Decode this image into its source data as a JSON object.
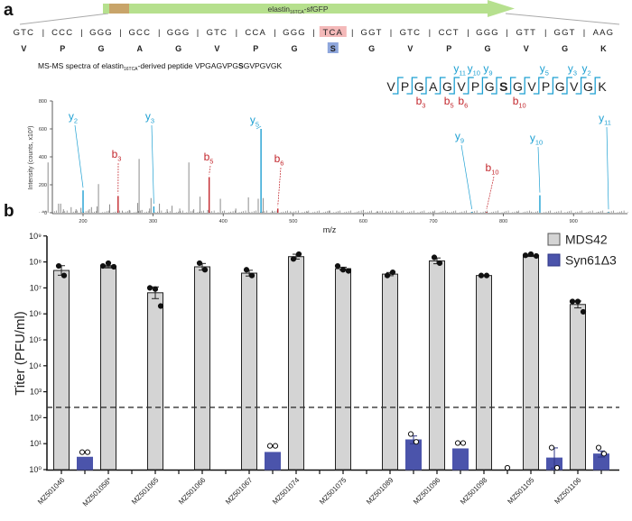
{
  "panel_a": {
    "label": "a",
    "construct": {
      "name": "elastin",
      "subscript": "16TCA",
      "suffix": "-sfGFP"
    },
    "codons": [
      "GTC",
      "CCC",
      "GGG",
      "GCC",
      "GGG",
      "GTC",
      "CCA",
      "GGG",
      "TCA",
      "GGT",
      "GTC",
      "CCT",
      "GGG",
      "GTT",
      "GGT",
      "AAG"
    ],
    "amino_acids": [
      "V",
      "P",
      "G",
      "A",
      "G",
      "V",
      "P",
      "G",
      "S",
      "G",
      "V",
      "P",
      "G",
      "V",
      "G",
      "K"
    ],
    "highlight_index": 8,
    "spectrum_title": {
      "prefix": "MS-MS spectra of elastin",
      "subscript": "16TCA",
      "middle": "-derived peptide VPGAGVPG",
      "bold": "S",
      "suffix": "GVPGVGK"
    },
    "peptide_fragments": {
      "y_breaks": [
        {
          "label": "y",
          "index": "11",
          "after": 5
        },
        {
          "label": "y",
          "index": "10",
          "after": 6
        },
        {
          "label": "y",
          "index": "9",
          "after": 7
        },
        {
          "label": "y",
          "index": "5",
          "after": 11
        },
        {
          "label": "y",
          "index": "3",
          "after": 13
        },
        {
          "label": "y",
          "index": "2",
          "after": 14
        }
      ],
      "b_breaks": [
        {
          "label": "b",
          "index": "3",
          "after": 3
        },
        {
          "label": "b",
          "index": "5",
          "after": 5
        },
        {
          "label": "b",
          "index": "6",
          "after": 6
        },
        {
          "label": "b",
          "index": "10",
          "after": 10
        }
      ]
    }
  },
  "panel_b": {
    "label": "b"
  },
  "colors": {
    "y_ion": "#1ea0d2",
    "b_ion": "#c3272d",
    "unassigned": "#8c8c8c",
    "mds42": "#d4d4d4",
    "syn61": "#4b54ab",
    "arrow": "#b6e08e",
    "codon_highlight": "#f4b9b9",
    "aa_highlight": "#8ea6dc"
  },
  "chart_data": [
    {
      "type": "bar",
      "title": "",
      "xlabel": "m/z",
      "ylabel": "Intensity (counts, x10³)",
      "xlim": [
        130,
        980
      ],
      "ylim": [
        0,
        800
      ],
      "xticks": [
        200,
        300,
        400,
        500,
        600,
        700,
        800,
        900
      ],
      "yticks": [
        0,
        200,
        400,
        600,
        800
      ],
      "assigned_peaks": [
        {
          "ion": "y",
          "index": "2",
          "mz": 200,
          "intensity": 160
        },
        {
          "ion": "b",
          "index": "3",
          "mz": 250,
          "intensity": 120
        },
        {
          "ion": "y",
          "index": "3",
          "mz": 301,
          "intensity": 45
        },
        {
          "ion": "b",
          "index": "5",
          "mz": 380,
          "intensity": 255
        },
        {
          "ion": "y",
          "index": "5",
          "mz": 454,
          "intensity": 600
        },
        {
          "ion": "b",
          "index": "6",
          "mz": 478,
          "intensity": 30
        },
        {
          "ion": "y",
          "index": "9",
          "mz": 755,
          "intensity": 6
        },
        {
          "ion": "b",
          "index": "10",
          "mz": 776,
          "intensity": 6
        },
        {
          "ion": "y",
          "index": "10",
          "mz": 852,
          "intensity": 125
        },
        {
          "ion": "y",
          "index": "11",
          "mz": 950,
          "intensity": 5
        }
      ],
      "unassigned_peaks": [
        {
          "mz": 143,
          "intensity": 15
        },
        {
          "mz": 150,
          "intensity": 360
        },
        {
          "mz": 165,
          "intensity": 65
        },
        {
          "mz": 168,
          "intensity": 65
        },
        {
          "mz": 172,
          "intensity": 25
        },
        {
          "mz": 183,
          "intensity": 40
        },
        {
          "mz": 190,
          "intensity": 25
        },
        {
          "mz": 197,
          "intensity": 35
        },
        {
          "mz": 209,
          "intensity": 25
        },
        {
          "mz": 212,
          "intensity": 40
        },
        {
          "mz": 220,
          "intensity": 45
        },
        {
          "mz": 222,
          "intensity": 205
        },
        {
          "mz": 238,
          "intensity": 60
        },
        {
          "mz": 256,
          "intensity": 15
        },
        {
          "mz": 266,
          "intensity": 20
        },
        {
          "mz": 278,
          "intensity": 70
        },
        {
          "mz": 280,
          "intensity": 385
        },
        {
          "mz": 284,
          "intensity": 20
        },
        {
          "mz": 295,
          "intensity": 30
        },
        {
          "mz": 297,
          "intensity": 105
        },
        {
          "mz": 309,
          "intensity": 65
        },
        {
          "mz": 320,
          "intensity": 25
        },
        {
          "mz": 327,
          "intensity": 50
        },
        {
          "mz": 338,
          "intensity": 30
        },
        {
          "mz": 351,
          "intensity": 360
        },
        {
          "mz": 358,
          "intensity": 25
        },
        {
          "mz": 367,
          "intensity": 115
        },
        {
          "mz": 378,
          "intensity": 20
        },
        {
          "mz": 396,
          "intensity": 100
        },
        {
          "mz": 418,
          "intensity": 30
        },
        {
          "mz": 436,
          "intensity": 110
        },
        {
          "mz": 450,
          "intensity": 100
        },
        {
          "mz": 457,
          "intensity": 105
        },
        {
          "mz": 470,
          "intensity": 15
        },
        {
          "mz": 496,
          "intensity": 10
        },
        {
          "mz": 520,
          "intensity": 8
        },
        {
          "mz": 551,
          "intensity": 15
        },
        {
          "mz": 600,
          "intensity": 20
        },
        {
          "mz": 620,
          "intensity": 12
        },
        {
          "mz": 632,
          "intensity": 10
        },
        {
          "mz": 648,
          "intensity": 15
        },
        {
          "mz": 700,
          "intensity": 6
        },
        {
          "mz": 720,
          "intensity": 6
        },
        {
          "mz": 820,
          "intensity": 6
        },
        {
          "mz": 840,
          "intensity": 8
        },
        {
          "mz": 935,
          "intensity": 5
        }
      ]
    },
    {
      "type": "bar",
      "title": "",
      "xlabel": "",
      "ylabel": "Titer (PFU/ml)",
      "yscale": "log",
      "ylim": [
        1,
        1000000000
      ],
      "yticks": [
        "10⁰",
        "10¹",
        "10²",
        "10³",
        "10⁴",
        "10⁵",
        "10⁶",
        "10⁷",
        "10⁸",
        "10⁹"
      ],
      "detection_limit": 250,
      "legend_position": "top-right",
      "categories": [
        "MZ501046",
        "MZ501058*",
        "MZ501065",
        "MZ501066",
        "MZ501067",
        "MZ501074",
        "MZ501075",
        "MZ501089",
        "MZ501096",
        "MZ501098",
        "MZ501105",
        "MZ501106"
      ],
      "series": [
        {
          "name": "MDS42",
          "values": [
            47000000,
            65000000,
            6500000,
            65000000,
            37000000,
            160000000,
            55000000,
            34000000,
            110000000,
            30000000,
            170000000,
            2300000
          ],
          "replicates": [
            [
              70000000,
              30000000
            ],
            [
              70000000,
              90000000,
              65000000
            ],
            [
              10000000,
              9000000,
              2000000
            ],
            [
              90000000,
              50000000
            ],
            [
              50000000,
              30000000
            ],
            [
              130000000,
              200000000
            ],
            [
              70000000,
              50000000,
              45000000
            ],
            [
              30000000,
              40000000
            ],
            [
              150000000,
              90000000
            ],
            [
              30000000,
              30000000
            ],
            [
              180000000,
              200000000,
              170000000
            ],
            [
              3000000,
              3000000,
              1200000
            ]
          ]
        },
        {
          "name": "Syn61Δ3",
          "values": [
            3,
            null,
            null,
            null,
            4.6,
            null,
            null,
            14,
            6.3,
            1,
            2.8,
            4
          ],
          "replicates": [
            [
              4,
              4
            ],
            [],
            [],
            [],
            [
              7,
              7
            ],
            [],
            [],
            [
              20,
              10
            ],
            [
              9,
              9
            ],
            [
              1
            ],
            [
              6,
              1
            ],
            [
              6,
              3.5
            ]
          ]
        }
      ]
    }
  ]
}
